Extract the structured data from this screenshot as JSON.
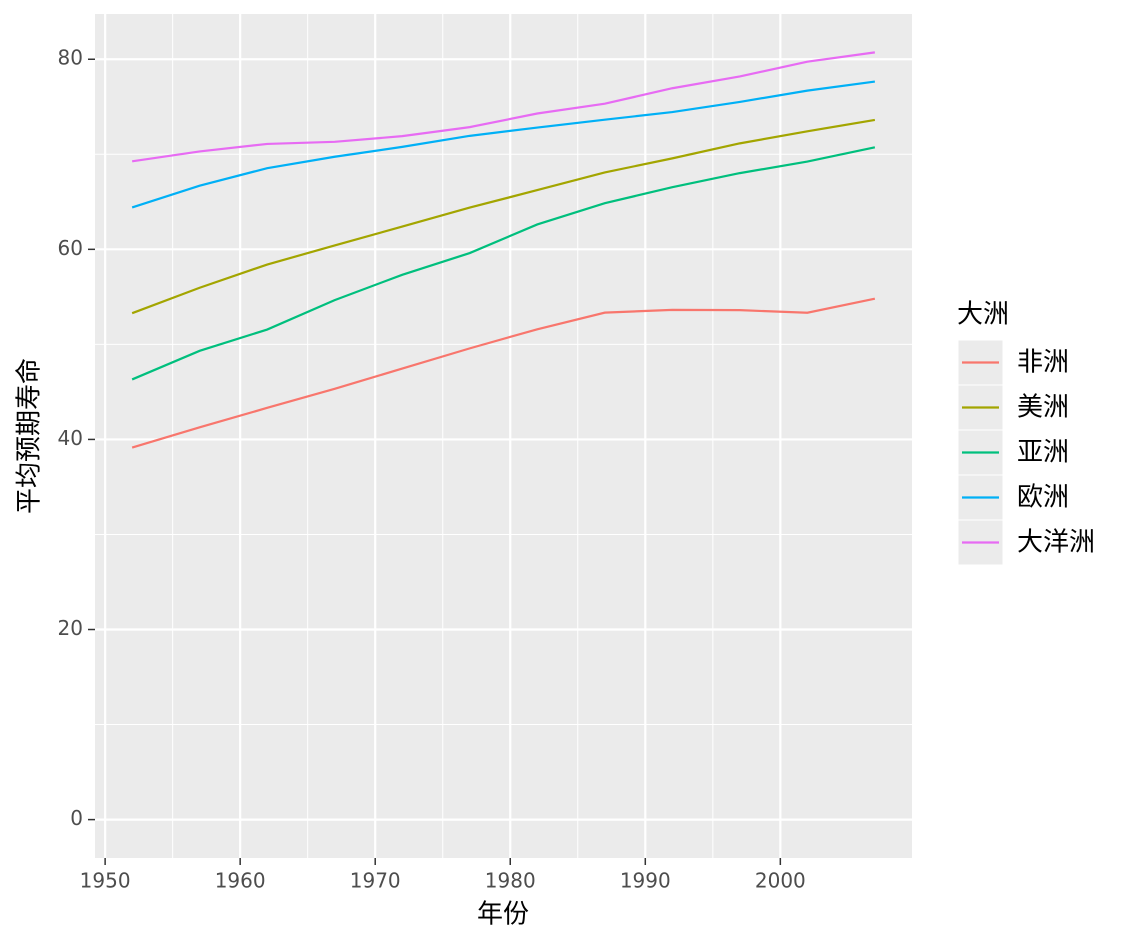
{
  "chart_data": {
    "type": "line",
    "x_label": "年份",
    "y_label": "平均预期寿命",
    "legend_title": "大洲",
    "x": [
      1952,
      1957,
      1962,
      1967,
      1972,
      1977,
      1982,
      1987,
      1992,
      1997,
      2002,
      2007
    ],
    "series": [
      {
        "name": "非洲",
        "color": "#F8766D",
        "values": [
          39.14,
          41.27,
          43.32,
          45.33,
          47.45,
          49.58,
          51.59,
          53.34,
          53.63,
          53.6,
          53.33,
          54.81
        ]
      },
      {
        "name": "美洲",
        "color": "#A3A500",
        "values": [
          53.28,
          55.96,
          58.4,
          60.41,
          62.39,
          64.39,
          66.23,
          68.09,
          69.57,
          71.15,
          72.42,
          73.61
        ]
      },
      {
        "name": "亚洲",
        "color": "#00BF7D",
        "values": [
          46.31,
          49.32,
          51.56,
          54.66,
          57.32,
          59.61,
          62.62,
          64.85,
          66.54,
          68.02,
          69.23,
          70.73
        ]
      },
      {
        "name": "欧洲",
        "color": "#00B0F6",
        "values": [
          64.41,
          66.7,
          68.54,
          69.74,
          70.78,
          71.94,
          72.81,
          73.64,
          74.44,
          75.51,
          76.7,
          77.65
        ]
      },
      {
        "name": "大洋洲",
        "color": "#E76BF3",
        "values": [
          69.26,
          70.3,
          71.09,
          71.31,
          71.91,
          72.86,
          74.29,
          75.32,
          76.95,
          78.19,
          79.74,
          80.72
        ]
      }
    ],
    "xlim": [
      1949.25,
      2009.75
    ],
    "ylim": [
      -4.04,
      84.76
    ],
    "xticks": [
      1950,
      1960,
      1970,
      1980,
      1990,
      2000
    ],
    "yticks": [
      0,
      20,
      40,
      60,
      80
    ],
    "grid": true,
    "legend_position": "right"
  }
}
